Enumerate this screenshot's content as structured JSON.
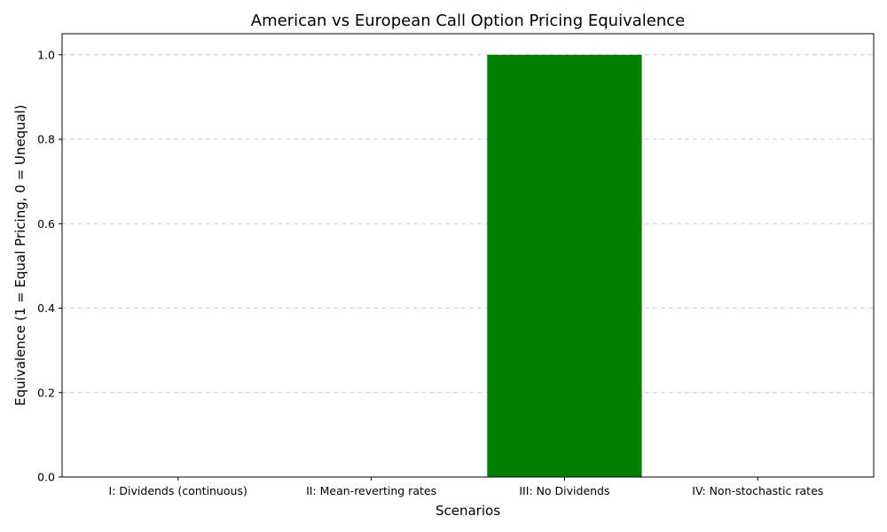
{
  "chart_data": {
    "type": "bar",
    "title": "American vs European Call Option Pricing Equivalence",
    "xlabel": "Scenarios",
    "ylabel": "Equivalence (1 = Equal Pricing, 0 = Unequal)",
    "categories": [
      "I: Dividends (continuous)",
      "II: Mean-reverting rates",
      "III: No Dividends",
      "IV: Non-stochastic rates"
    ],
    "values": [
      0,
      0,
      1,
      0
    ],
    "bar_color": "#008000",
    "ylim": [
      0,
      1.05
    ],
    "yticks": [
      0.0,
      0.2,
      0.4,
      0.6,
      0.8,
      1.0
    ],
    "ytick_labels": [
      "0.0",
      "0.2",
      "0.4",
      "0.6",
      "0.8",
      "1.0"
    ],
    "grid": {
      "axis": "y",
      "style": "dashed",
      "color": "#cccccc"
    },
    "legend": "none"
  }
}
